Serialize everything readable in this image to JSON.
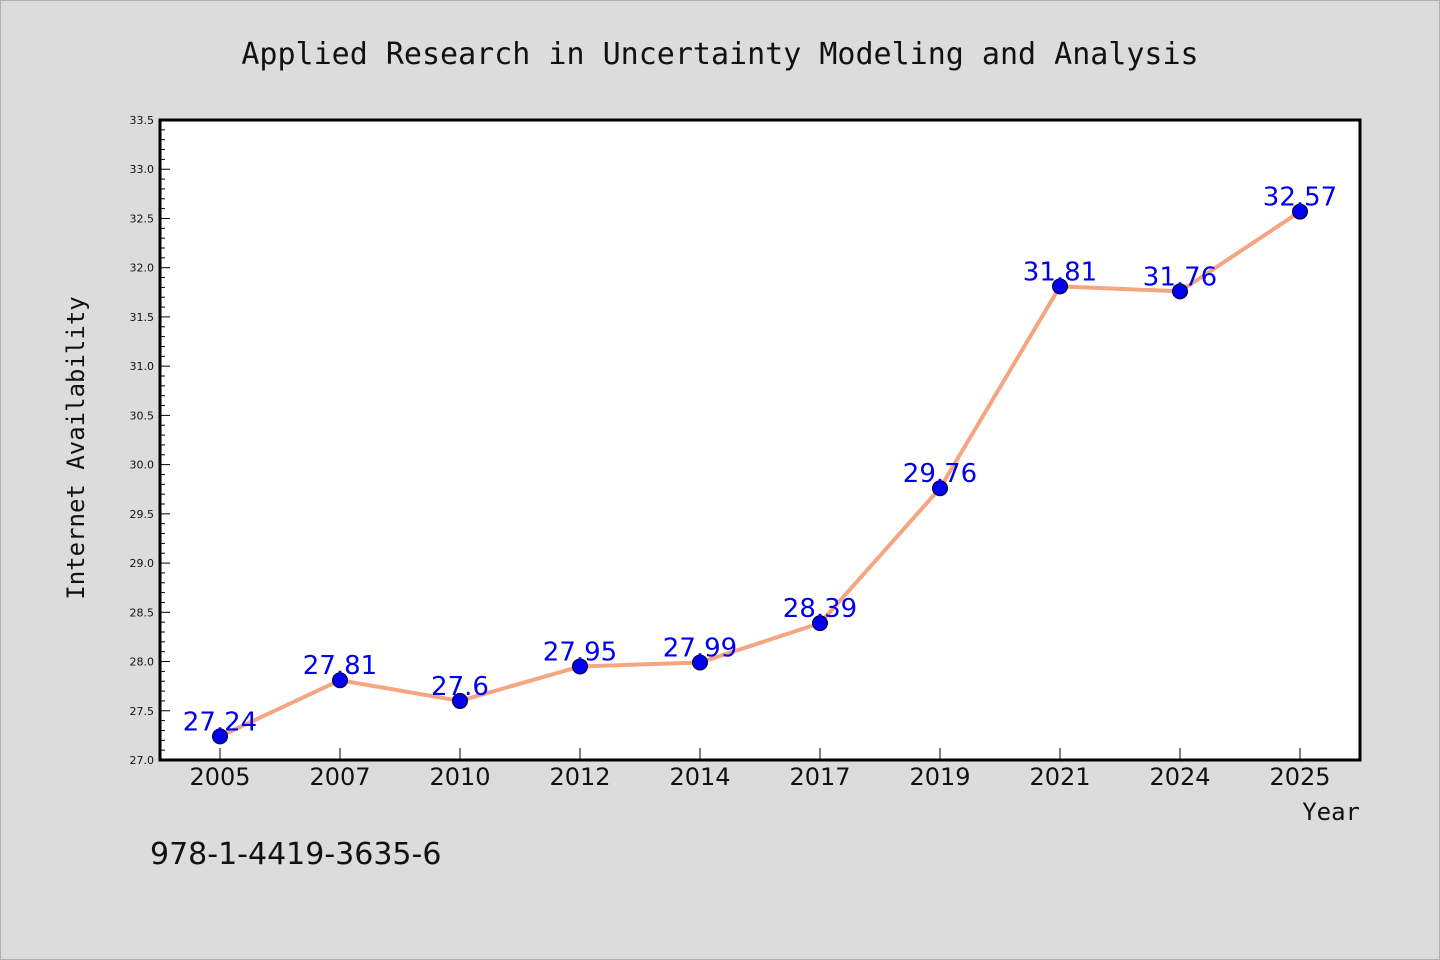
{
  "chart_data": {
    "type": "line",
    "title": "Applied Research in Uncertainty Modeling and Analysis",
    "xlabel": "Year",
    "ylabel": "Internet Availability",
    "categories": [
      "2005",
      "2007",
      "2010",
      "2012",
      "2014",
      "2017",
      "2019",
      "2021",
      "2024",
      "2025"
    ],
    "values": [
      27.24,
      27.81,
      27.6,
      27.95,
      27.99,
      28.39,
      29.76,
      31.81,
      31.76,
      32.57
    ],
    "data_labels": [
      "27.24",
      "27.81",
      "27.6",
      "27.95",
      "27.99",
      "28.39",
      "29.76",
      "31.81",
      "31.76",
      "32.57"
    ],
    "ylim": [
      27.0,
      33.5
    ],
    "yticks": [
      "27.0",
      "27.5",
      "28.0",
      "28.5",
      "29.0",
      "29.5",
      "30.0",
      "30.5",
      "31.0",
      "31.5",
      "32.0",
      "32.5",
      "33.0",
      "33.5"
    ],
    "grid": false,
    "legend": "none",
    "colors": {
      "line": "#f4a582",
      "marker": "#0000ee",
      "label": "#0000ee",
      "background": "#dcdcdc",
      "plot_background": "#ffffff"
    }
  },
  "footer": {
    "isbn": "978-1-4419-3635-6"
  }
}
